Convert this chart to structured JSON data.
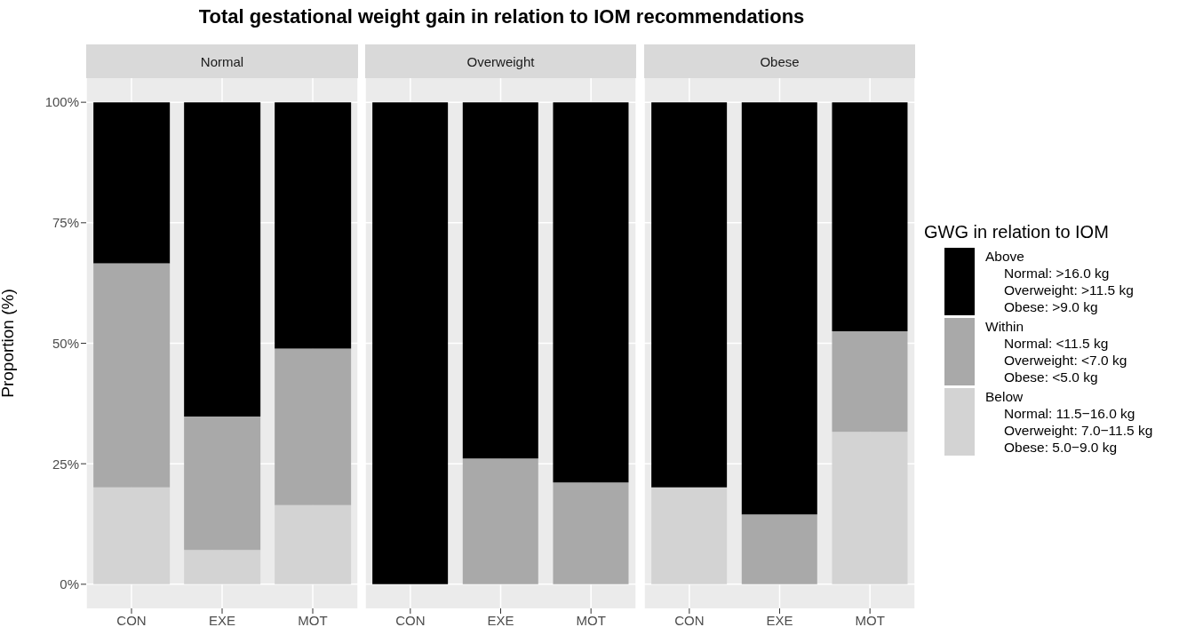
{
  "chart_data": [
    {
      "type": "bar",
      "title": "Total gestational weight gain in relation to IOM recommendations",
      "subtitle": "Normal",
      "ylabel": "Proportion (%)",
      "categories": [
        "CON",
        "EXE",
        "MOT"
      ],
      "stacked": true,
      "grid": true,
      "legend": false,
      "ylim": [
        -5,
        105
      ],
      "yticks": [
        {
          "value": 0,
          "label": "0%"
        },
        {
          "value": 25,
          "label": "25%"
        },
        {
          "value": 50,
          "label": "50%"
        },
        {
          "value": 75,
          "label": "75%"
        },
        {
          "value": 100,
          "label": "100%"
        }
      ],
      "series": [
        {
          "color": "#d3d3d3",
          "values": [
            20.1,
            7.1,
            16.4
          ]
        },
        {
          "color": "#a9a9a9",
          "values": [
            46.5,
            27.7,
            32.5
          ]
        },
        {
          "color": "#000000",
          "values": [
            33.4,
            65.2,
            51.1
          ]
        }
      ]
    },
    {
      "type": "bar",
      "subtitle": "Overweight",
      "categories": [
        "CON",
        "EXE",
        "MOT"
      ],
      "stacked": true,
      "grid": true,
      "legend": false,
      "tick_labels": "x",
      "ylim": [
        -5,
        105
      ],
      "yticks": [
        0,
        25,
        50,
        75,
        100
      ],
      "series": [
        {
          "color": "#d3d3d3",
          "values": [
            0,
            0,
            0
          ]
        },
        {
          "color": "#a9a9a9",
          "values": [
            0,
            26.1,
            21.1
          ]
        },
        {
          "color": "#000000",
          "values": [
            100,
            73.9,
            78.9
          ]
        }
      ]
    },
    {
      "type": "bar",
      "subtitle": "Obese",
      "legend_title": "GWG in relation to IOM",
      "categories": [
        "CON",
        "EXE",
        "MOT"
      ],
      "stacked": true,
      "grid": true,
      "legend": "right",
      "tick_labels": "x",
      "ylim": [
        -5,
        105
      ],
      "yticks": [
        0,
        25,
        50,
        75,
        100
      ],
      "series": [
        {
          "name": "Below\nNormal: 11.5−16.0 kg\nOverweight: 7.0−11.5 kg\nObese: 5.0−9.0 kg",
          "color": "#d3d3d3",
          "values": [
            20.1,
            0,
            31.6
          ]
        },
        {
          "name": "Within\nNormal: <11.5 kg\nOverweight: <7.0 kg\nObese: <5.0 kg",
          "color": "#a9a9a9",
          "values": [
            0,
            14.5,
            20.9
          ]
        },
        {
          "name": "Above\nNormal: >16.0 kg\nOverweight: >11.5 kg\nObese: >9.0 kg",
          "color": "#000000",
          "values": [
            79.9,
            85.5,
            47.5
          ]
        }
      ]
    }
  ]
}
